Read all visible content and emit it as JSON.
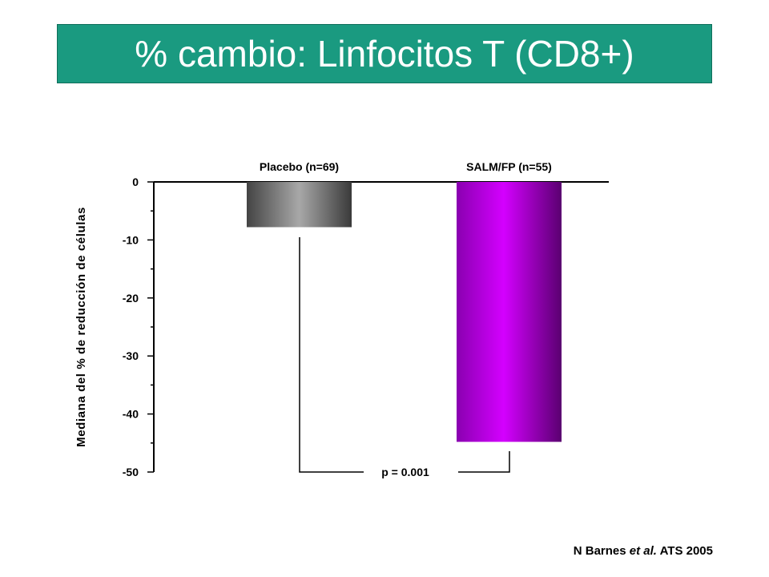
{
  "title": "% cambio: Linfocitos T (CD8+)",
  "citation": {
    "author": "N Barnes ",
    "etal": "et al.",
    "source": " ATS 2005"
  },
  "chart_data": {
    "type": "bar",
    "title": "% cambio: Linfocitos T (CD8+)",
    "ylabel": "Mediana del % de reducción de células",
    "xlabel": "",
    "ylim": [
      -50,
      0
    ],
    "yticks": [
      "0",
      "-10",
      "-20",
      "-30",
      "-40",
      "-50"
    ],
    "categories": [
      "Placebo (n=69)",
      "SALM/FP (n=55)"
    ],
    "values": [
      -7.8,
      -44.8
    ],
    "colors": [
      "#8a8a8a",
      "#cc00ff"
    ],
    "annotation": "p = 0.001",
    "grid": false
  }
}
